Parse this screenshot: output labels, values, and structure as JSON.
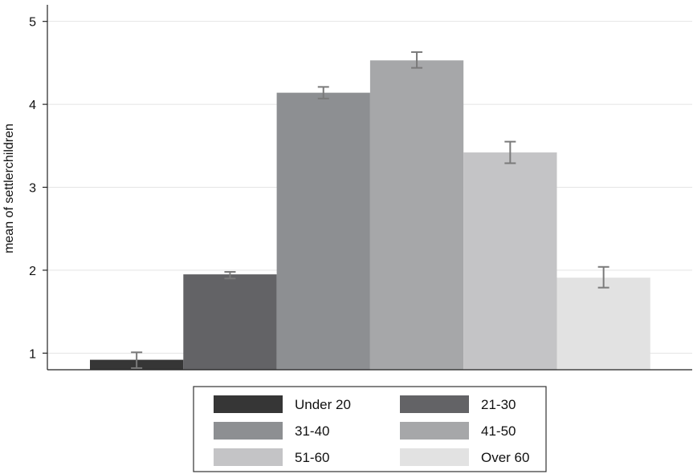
{
  "chart_data": {
    "type": "bar",
    "ylabel": "mean of settlerchildren",
    "xlabel": "",
    "ylim": [
      0.8,
      5.2
    ],
    "yticks": [
      1,
      2,
      3,
      4,
      5
    ],
    "grid": true,
    "legend_position": "bottom",
    "series": [
      {
        "name": "Under 20",
        "value": 0.92,
        "ci": [
          0.82,
          1.01
        ],
        "color": "#363636"
      },
      {
        "name": "21-30",
        "value": 1.95,
        "ci": [
          1.9,
          1.98
        ],
        "color": "#636366"
      },
      {
        "name": "31-40",
        "value": 4.14,
        "ci": [
          4.07,
          4.21
        ],
        "color": "#8d8f92"
      },
      {
        "name": "41-50",
        "value": 4.53,
        "ci": [
          4.44,
          4.63
        ],
        "color": "#a6a7a9"
      },
      {
        "name": "51-60",
        "value": 3.42,
        "ci": [
          3.29,
          3.55
        ],
        "color": "#c4c4c6"
      },
      {
        "name": "Over 60",
        "value": 1.91,
        "ci": [
          1.79,
          2.04
        ],
        "color": "#e2e2e2"
      }
    ]
  }
}
